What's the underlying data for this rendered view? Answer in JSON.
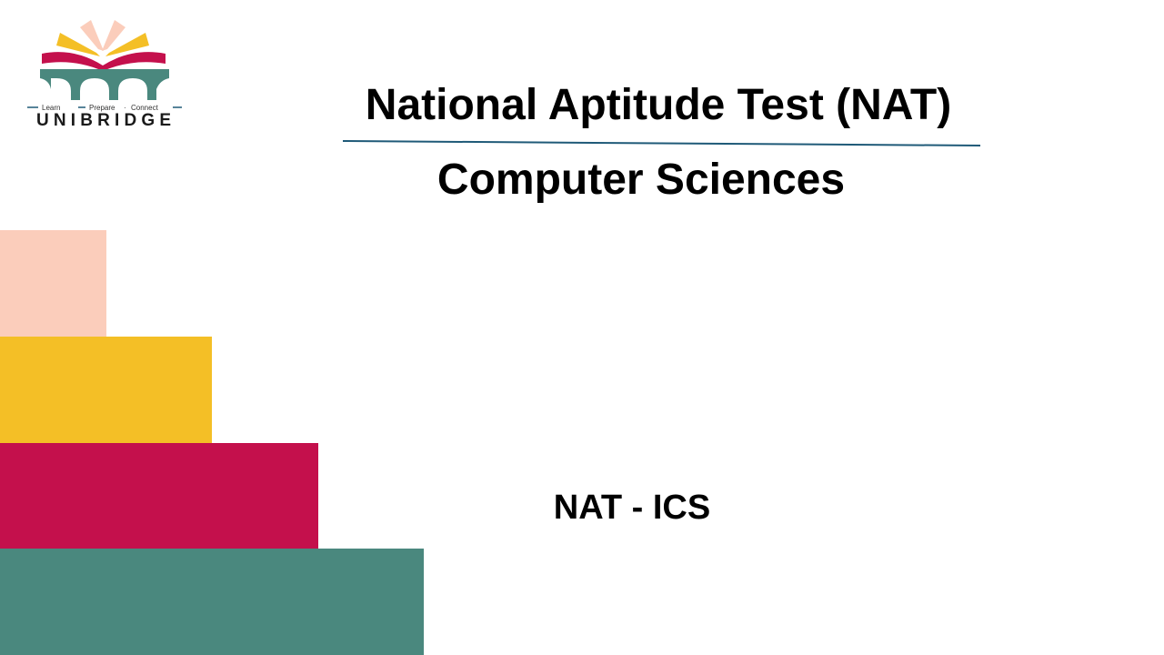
{
  "logo": {
    "tagline": "Learn — Prepare · Connect",
    "tagline_parts": [
      "Learn",
      "Prepare",
      "Connect"
    ],
    "brand": "UNIBRIDGE"
  },
  "slide": {
    "title": "National Aptitude Test (NAT)",
    "subtitle": "Computer Sciences",
    "code": "NAT - ICS"
  },
  "colors": {
    "peach": "#FBCDBB",
    "yellow": "#F4BF26",
    "crimson": "#C4104C",
    "teal": "#4A887E",
    "rule": "#1F5A78"
  }
}
